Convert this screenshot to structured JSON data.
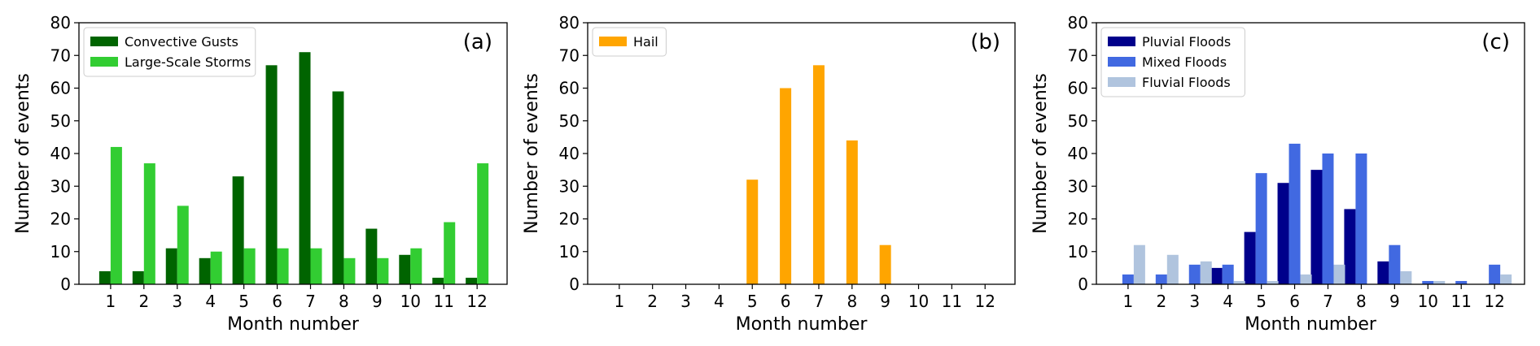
{
  "colors": {
    "convective_gusts": "#006400",
    "large_scale_storms": "#32CD32",
    "hail": "#FFA500",
    "pluvial_floods": "#00008B",
    "mixed_floods": "#4169E1",
    "fluvial_floods": "#B0C4DE"
  },
  "chart_data": [
    {
      "type": "bar",
      "panel_tag": "(a)",
      "xlabel": "Month number",
      "ylabel": "Number of events",
      "categories": [
        "1",
        "2",
        "3",
        "4",
        "5",
        "6",
        "7",
        "8",
        "9",
        "10",
        "11",
        "12"
      ],
      "ylim": [
        0,
        80
      ],
      "yticks": [
        "0",
        "10",
        "20",
        "30",
        "40",
        "50",
        "60",
        "70",
        "80"
      ],
      "legend_position": "top-left",
      "series": [
        {
          "name": "Convective Gusts",
          "color": "#006400",
          "values": [
            4,
            4,
            11,
            8,
            33,
            67,
            71,
            59,
            17,
            9,
            2,
            2
          ]
        },
        {
          "name": "Large-Scale Storms",
          "color": "#32CD32",
          "values": [
            42,
            37,
            24,
            10,
            11,
            11,
            11,
            8,
            8,
            11,
            19,
            37
          ]
        }
      ]
    },
    {
      "type": "bar",
      "panel_tag": "(b)",
      "xlabel": "Month number",
      "ylabel": "Number of events",
      "categories": [
        "1",
        "2",
        "3",
        "4",
        "5",
        "6",
        "7",
        "8",
        "9",
        "10",
        "11",
        "12"
      ],
      "ylim": [
        0,
        80
      ],
      "yticks": [
        "0",
        "10",
        "20",
        "30",
        "40",
        "50",
        "60",
        "70",
        "80"
      ],
      "legend_position": "top-left",
      "series": [
        {
          "name": "Hail",
          "color": "#FFA500",
          "values": [
            0,
            0,
            0,
            0,
            32,
            60,
            67,
            44,
            12,
            0,
            0,
            0
          ]
        }
      ]
    },
    {
      "type": "bar",
      "panel_tag": "(c)",
      "xlabel": "Month number",
      "ylabel": "Number of events",
      "categories": [
        "1",
        "2",
        "3",
        "4",
        "5",
        "6",
        "7",
        "8",
        "9",
        "10",
        "11",
        "12"
      ],
      "ylim": [
        0,
        80
      ],
      "yticks": [
        "0",
        "10",
        "20",
        "30",
        "40",
        "50",
        "60",
        "70",
        "80"
      ],
      "legend_position": "top-left",
      "series": [
        {
          "name": "Pluvial Floods",
          "color": "#00008B",
          "values": [
            0,
            0,
            0,
            5,
            16,
            31,
            35,
            23,
            7,
            0,
            0,
            0
          ]
        },
        {
          "name": "Mixed Floods",
          "color": "#4169E1",
          "values": [
            3,
            3,
            6,
            6,
            34,
            43,
            40,
            40,
            12,
            1,
            1,
            6
          ]
        },
        {
          "name": "Fluvial Floods",
          "color": "#B0C4DE",
          "values": [
            12,
            9,
            7,
            1,
            1,
            3,
            6,
            0,
            4,
            1,
            0,
            3
          ]
        }
      ]
    }
  ]
}
